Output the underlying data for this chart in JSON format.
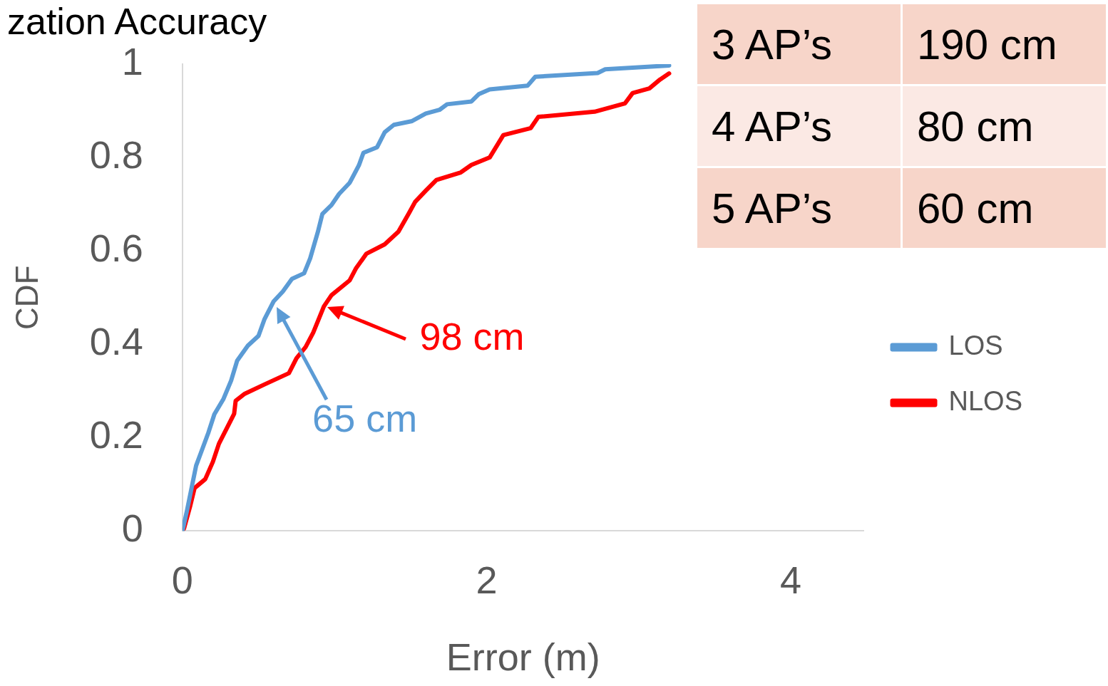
{
  "chart_data": {
    "type": "line",
    "title": "zation Accuracy",
    "xlabel": "Error (m)",
    "ylabel": "CDF",
    "xlim": [
      0,
      4.48
    ],
    "xticks": [
      0,
      2,
      4
    ],
    "ylim": [
      0,
      1
    ],
    "yticks": [
      0,
      0.2,
      0.4,
      0.6,
      0.8,
      1
    ],
    "grid": false,
    "legend": "right",
    "marker": "none",
    "line_style": "solid",
    "series": [
      {
        "name": "LOS",
        "color": "#5b9bd5",
        "x": [
          0,
          0.03,
          0.06,
          0.09,
          0.13,
          0.17,
          0.21,
          0.27,
          0.32,
          0.36,
          0.43,
          0.5,
          0.54,
          0.6,
          0.66,
          0.72,
          0.8,
          0.84,
          0.89,
          0.92,
          0.98,
          1.03,
          1.1,
          1.16,
          1.19,
          1.28,
          1.33,
          1.39,
          1.51,
          1.6,
          1.69,
          1.74,
          1.9,
          1.95,
          2.02,
          2.27,
          2.32,
          2.73,
          2.78,
          3.2
        ],
        "values": [
          0,
          0.044,
          0.092,
          0.14,
          0.175,
          0.21,
          0.25,
          0.283,
          0.322,
          0.365,
          0.397,
          0.418,
          0.454,
          0.492,
          0.513,
          0.54,
          0.552,
          0.584,
          0.64,
          0.679,
          0.698,
          0.722,
          0.746,
          0.783,
          0.81,
          0.822,
          0.854,
          0.87,
          0.878,
          0.894,
          0.902,
          0.914,
          0.92,
          0.936,
          0.946,
          0.954,
          0.973,
          0.981,
          0.989,
          0.997
        ]
      },
      {
        "name": "NLOS",
        "color": "#ff0000",
        "x": [
          0.01,
          0.05,
          0.08,
          0.15,
          0.2,
          0.24,
          0.29,
          0.34,
          0.35,
          0.41,
          0.54,
          0.7,
          0.75,
          0.81,
          0.86,
          0.89,
          0.93,
          0.98,
          1.1,
          1.14,
          1.21,
          1.33,
          1.42,
          1.49,
          1.53,
          1.6,
          1.67,
          1.83,
          1.9,
          2.02,
          2.11,
          2.29,
          2.34,
          2.71,
          2.91,
          2.96,
          3.07,
          3.14,
          3.2
        ],
        "values": [
          0.005,
          0.052,
          0.092,
          0.111,
          0.148,
          0.187,
          0.219,
          0.251,
          0.279,
          0.294,
          0.314,
          0.338,
          0.37,
          0.394,
          0.425,
          0.449,
          0.481,
          0.505,
          0.537,
          0.562,
          0.594,
          0.614,
          0.641,
          0.681,
          0.705,
          0.729,
          0.752,
          0.768,
          0.784,
          0.8,
          0.848,
          0.863,
          0.887,
          0.898,
          0.916,
          0.938,
          0.948,
          0.967,
          0.98
        ]
      }
    ],
    "annotations": [
      {
        "text": "65 cm",
        "x": 0.62,
        "y": 0.48
      },
      {
        "text": "98 cm",
        "x": 0.95,
        "y": 0.48
      },
      "3 AP’s",
      "190 cm",
      "4 AP’s",
      "80 cm",
      "5 AP’s",
      "60 cm"
    ]
  }
}
